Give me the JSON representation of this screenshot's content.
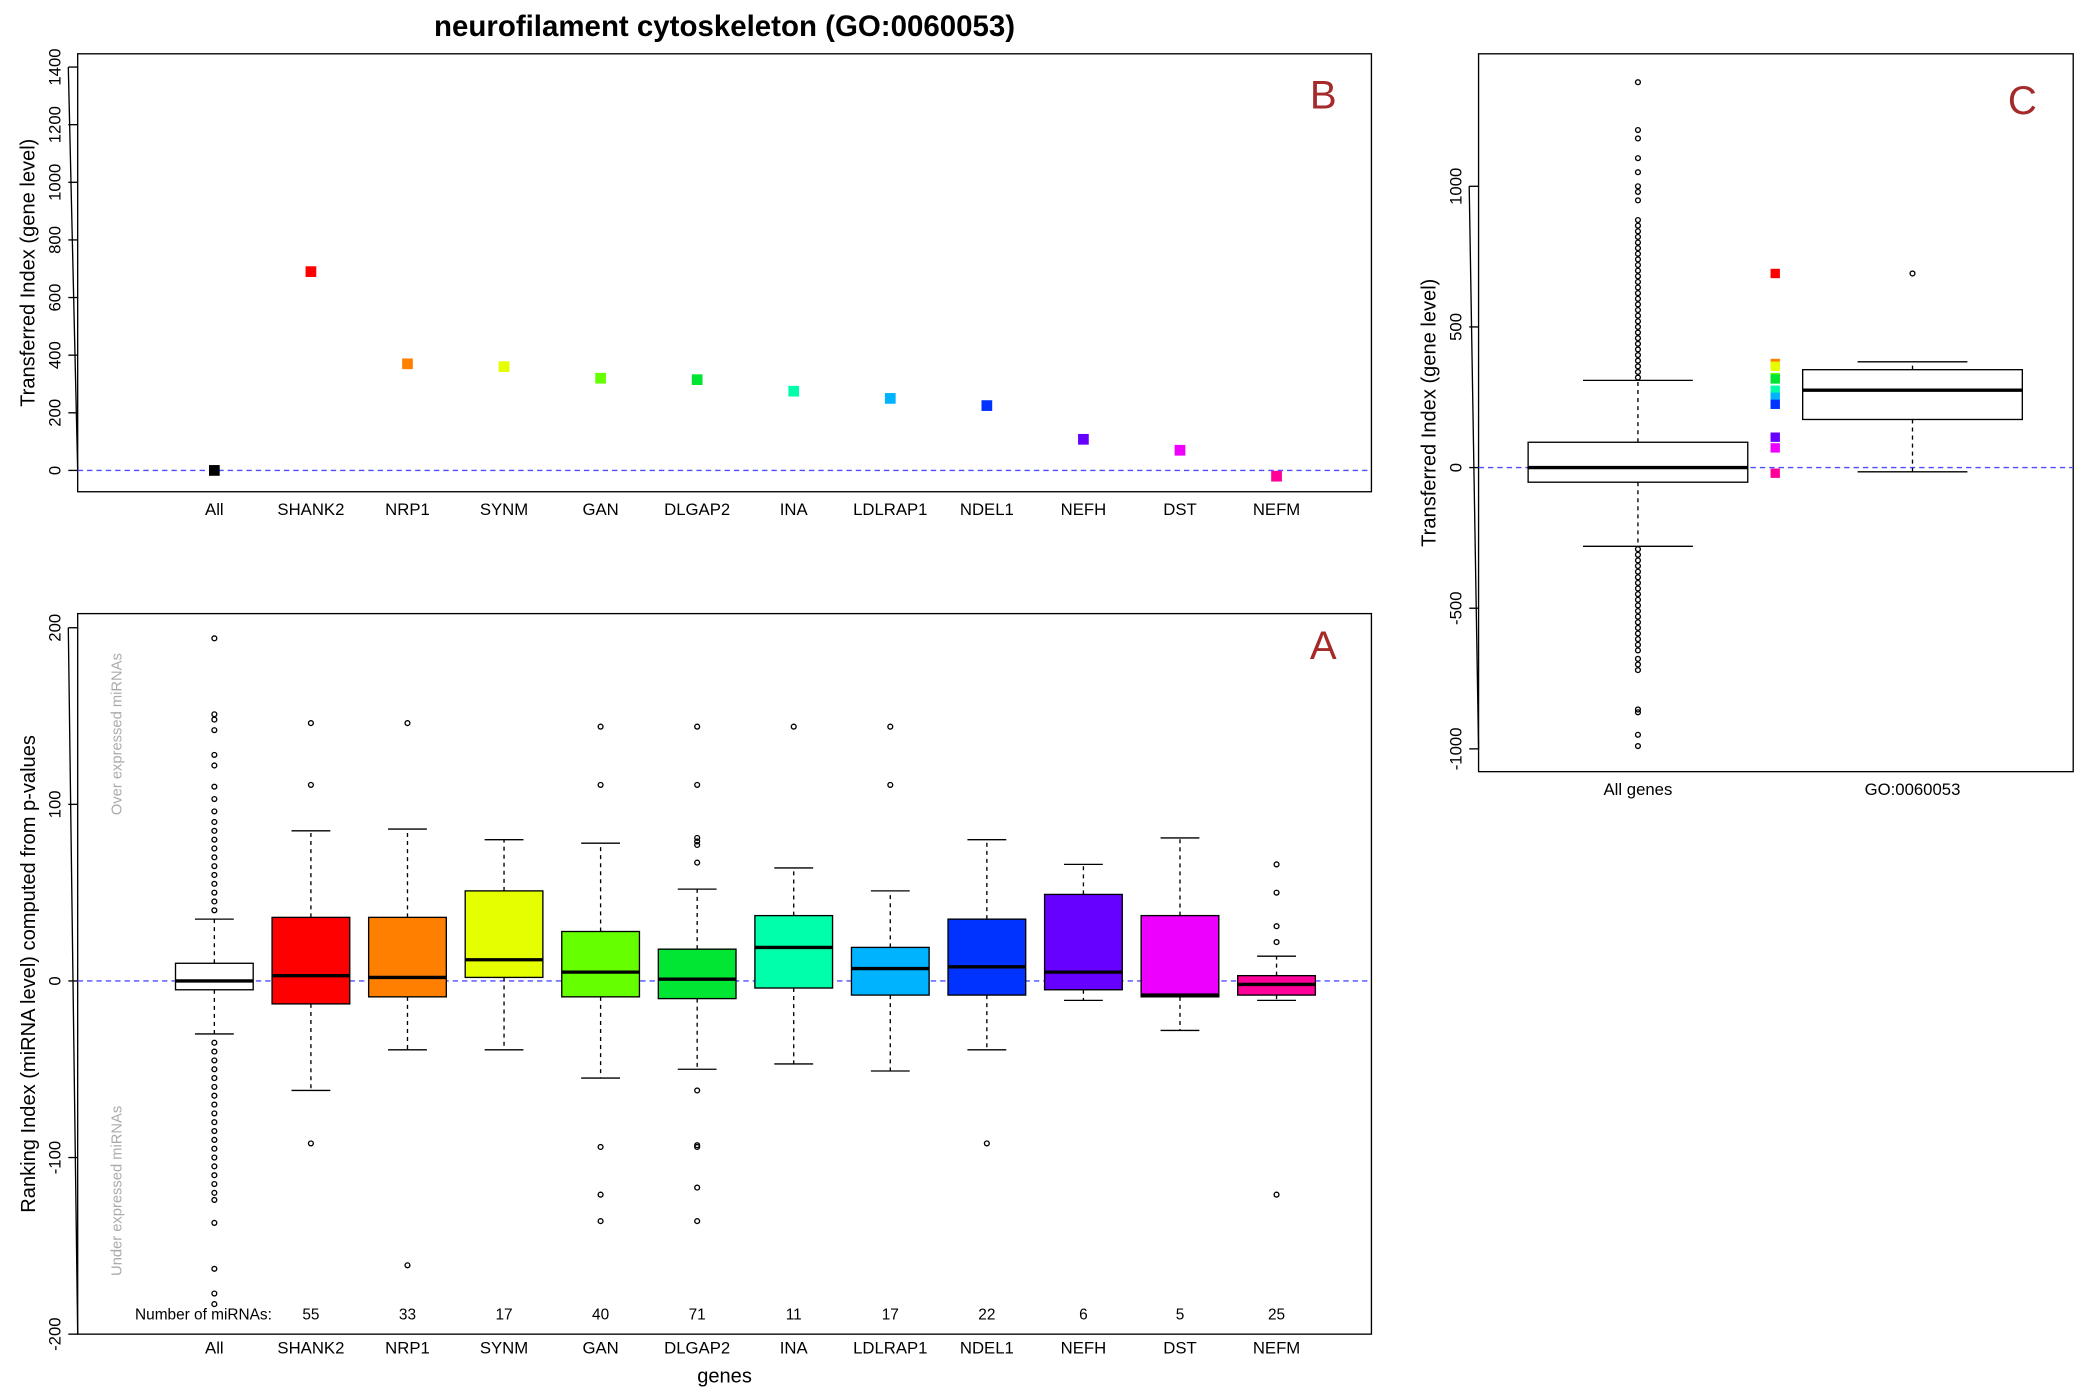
{
  "chart_data": [
    {
      "type": "dot",
      "title": "neurofilament cytoskeleton (GO:0060053)",
      "panel_label": "B",
      "ylabel": "Transferred   Index   (gene level)",
      "categories": [
        "All",
        "SHANK2",
        "NRP1",
        "SYNM",
        "GAN",
        "DLGAP2",
        "INA",
        "LDLRAP1",
        "NDEL1",
        "NEFH",
        "DST",
        "NEFM"
      ],
      "values": [
        0,
        690,
        370,
        360,
        320,
        315,
        275,
        250,
        225,
        108,
        70,
        -20
      ],
      "colors": [
        "#000000",
        "#ff0000",
        "#ff8000",
        "#e5ff00",
        "#66ff00",
        "#00e633",
        "#00ffaa",
        "#00b3ff",
        "#0033ff",
        "#6600ff",
        "#ee00ff",
        "#ff0099"
      ],
      "ylim": [
        -74,
        1446
      ],
      "yticks": [
        0,
        200,
        400,
        600,
        800,
        1000,
        1200,
        1400
      ],
      "reference_line": 0
    },
    {
      "type": "boxplot",
      "panel_label": "A",
      "ylabel": "Ranking Index (miRNA level) computed from p-values",
      "xlabel": "genes",
      "annotations": {
        "over": "Over expressed miRNAs",
        "under": "Under expressed miRNAs"
      },
      "categories": [
        "All",
        "SHANK2",
        "NRP1",
        "SYNM",
        "GAN",
        "DLGAP2",
        "INA",
        "LDLRAP1",
        "NDEL1",
        "NEFH",
        "DST",
        "NEFM"
      ],
      "colors": [
        "#ffffff",
        "#ff0000",
        "#ff8000",
        "#e5ff00",
        "#66ff00",
        "#00e633",
        "#00ffaa",
        "#00b3ff",
        "#0033ff",
        "#6600ff",
        "#ee00ff",
        "#ff0099"
      ],
      "boxes": [
        {
          "q1": -5,
          "median": 0,
          "q3": 10,
          "whisker_low": -30,
          "whisker_high": 35,
          "outliers": [
            194,
            151,
            148,
            142,
            128,
            122,
            110,
            103,
            96,
            90,
            85,
            80,
            75,
            70,
            65,
            60,
            55,
            50,
            45,
            40,
            -35,
            -40,
            -45,
            -50,
            -55,
            -60,
            -65,
            -70,
            -75,
            -80,
            -85,
            -90,
            -95,
            -100,
            -105,
            -110,
            -115,
            -120,
            -124,
            -137,
            -163,
            -177,
            -183
          ]
        },
        {
          "q1": -13,
          "median": 3,
          "q3": 36,
          "whisker_low": -62,
          "whisker_high": 85,
          "outliers": [
            146,
            111,
            -92
          ]
        },
        {
          "q1": -9,
          "median": 2,
          "q3": 36,
          "whisker_low": -39,
          "whisker_high": 86,
          "outliers": [
            146,
            -161
          ]
        },
        {
          "q1": 2,
          "median": 12,
          "q3": 51,
          "whisker_low": -39,
          "whisker_high": 80,
          "outliers": []
        },
        {
          "q1": -9,
          "median": 5,
          "q3": 28,
          "whisker_low": -55,
          "whisker_high": 78,
          "outliers": [
            144,
            111,
            -94,
            -121,
            -136
          ]
        },
        {
          "q1": -10,
          "median": 1,
          "q3": 18,
          "whisker_low": -50,
          "whisker_high": 52,
          "outliers": [
            144,
            111,
            81,
            79,
            77,
            67,
            -62,
            -93,
            -94,
            -117,
            -136
          ]
        },
        {
          "q1": -4,
          "median": 19,
          "q3": 37,
          "whisker_low": -47,
          "whisker_high": 64,
          "outliers": [
            144
          ]
        },
        {
          "q1": -8,
          "median": 7,
          "q3": 19,
          "whisker_low": -51,
          "whisker_high": 51,
          "outliers": [
            144,
            111
          ]
        },
        {
          "q1": -8,
          "median": 8,
          "q3": 35,
          "whisker_low": -39,
          "whisker_high": 80,
          "outliers": [
            -92
          ]
        },
        {
          "q1": -5,
          "median": 5,
          "q3": 49,
          "whisker_low": -11,
          "whisker_high": 66,
          "outliers": []
        },
        {
          "q1": -9,
          "median": -8,
          "q3": 37,
          "whisker_low": -28,
          "whisker_high": 81,
          "outliers": []
        },
        {
          "q1": -8,
          "median": -2,
          "q3": 3,
          "whisker_low": -11,
          "whisker_high": 14,
          "outliers": [
            66,
            50,
            31,
            22,
            -121
          ]
        }
      ],
      "counts_label": "Number of miRNAs:",
      "counts": [
        null,
        55,
        33,
        17,
        40,
        71,
        11,
        17,
        22,
        6,
        5,
        25
      ],
      "ylim": [
        -200,
        208
      ],
      "yticks": [
        -200,
        -100,
        0,
        100,
        200
      ],
      "reference_line": 0
    },
    {
      "type": "boxplot",
      "panel_label": "C",
      "ylabel": "Transferred   Index   (gene level)",
      "categories": [
        "All genes",
        "GO:0060053"
      ],
      "colors": [
        "#ffffff",
        "#ffffff"
      ],
      "boxes": [
        {
          "q1": -52,
          "median": 0,
          "q3": 90,
          "whisker_low": -280,
          "whisker_high": 310,
          "outliers": [
            320,
            340,
            360,
            380,
            400,
            420,
            440,
            460,
            480,
            500,
            520,
            540,
            560,
            580,
            600,
            620,
            640,
            660,
            680,
            700,
            720,
            740,
            760,
            780,
            800,
            820,
            840,
            860,
            880,
            950,
            980,
            1000,
            1050,
            1100,
            1170,
            1200,
            1370,
            -290,
            -310,
            -330,
            -350,
            -370,
            -390,
            -410,
            -430,
            -450,
            -470,
            -490,
            -510,
            -530,
            -550,
            -570,
            -590,
            -610,
            -630,
            -650,
            -680,
            -700,
            -720,
            -860,
            -870,
            -950,
            -990
          ]
        },
        {
          "q1": 171,
          "median": 275,
          "q3": 348,
          "whisker_low": -15,
          "whisker_high": 376,
          "outliers": [
            690
          ]
        }
      ],
      "ylim": [
        -1081,
        1471
      ],
      "yticks": [
        -1000,
        -500,
        0,
        500,
        1000
      ],
      "reference_line": 0
    }
  ]
}
